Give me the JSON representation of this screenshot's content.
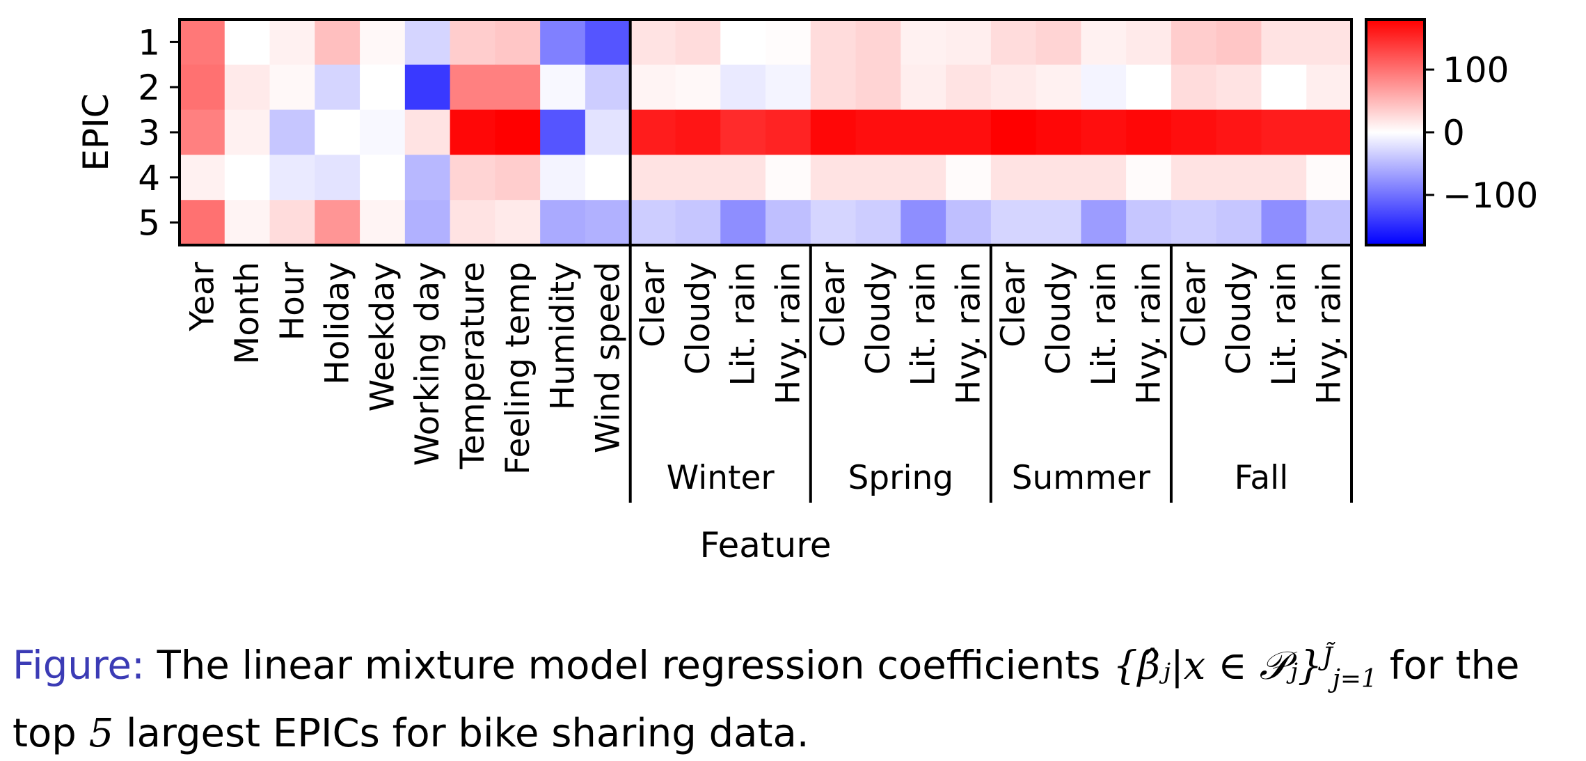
{
  "chart_data": {
    "type": "heatmap",
    "ylabel": "EPIC",
    "xlabel": "Feature",
    "rows": [
      "1",
      "2",
      "3",
      "4",
      "5"
    ],
    "features": [
      "Year",
      "Month",
      "Hour",
      "Holiday",
      "Weekday",
      "Working day",
      "Temperature",
      "Feeling temp",
      "Humidity",
      "Wind speed"
    ],
    "season_groups": [
      {
        "name": "Winter",
        "weather": [
          "Clear",
          "Cloudy",
          "Lit. rain",
          "Hvy. rain"
        ]
      },
      {
        "name": "Spring",
        "weather": [
          "Clear",
          "Cloudy",
          "Lit. rain",
          "Hvy. rain"
        ]
      },
      {
        "name": "Summer",
        "weather": [
          "Clear",
          "Cloudy",
          "Lit. rain",
          "Hvy. rain"
        ]
      },
      {
        "name": "Fall",
        "weather": [
          "Clear",
          "Cloudy",
          "Lit. rain",
          "Hvy. rain"
        ]
      }
    ],
    "values": [
      [
        95,
        0,
        10,
        45,
        5,
        -30,
        35,
        40,
        -90,
        -120,
        20,
        25,
        0,
        2,
        25,
        30,
        10,
        12,
        25,
        30,
        10,
        15,
        35,
        40,
        20,
        20
      ],
      [
        100,
        15,
        5,
        -30,
        0,
        -140,
        90,
        90,
        -5,
        -35,
        8,
        5,
        -15,
        -8,
        25,
        30,
        12,
        20,
        15,
        10,
        -8,
        0,
        25,
        20,
        0,
        12
      ],
      [
        90,
        10,
        -40,
        0,
        -5,
        20,
        175,
        185,
        -120,
        -20,
        160,
        165,
        150,
        155,
        175,
        170,
        170,
        170,
        180,
        175,
        170,
        175,
        170,
        165,
        160,
        160
      ],
      [
        10,
        0,
        -15,
        -20,
        0,
        -50,
        30,
        35,
        -8,
        0,
        20,
        20,
        20,
        3,
        20,
        20,
        20,
        3,
        20,
        20,
        20,
        3,
        20,
        20,
        20,
        3
      ],
      [
        100,
        8,
        25,
        75,
        8,
        -55,
        20,
        15,
        -60,
        -55,
        -35,
        -40,
        -80,
        -45,
        -30,
        -35,
        -80,
        -45,
        -30,
        -30,
        -70,
        -40,
        -35,
        -40,
        -80,
        -45
      ]
    ],
    "colorbar": {
      "colormap": "bwr",
      "range": [
        -180,
        180
      ],
      "ticks": [
        100,
        0,
        -100
      ],
      "tick_labels": [
        "100",
        "0",
        "−100"
      ]
    }
  },
  "caption": {
    "label": "Figure:",
    "text_before": "The linear mixture model regression coefficients",
    "math": "{β̂ⱼ|x ∈ 𝒫ⱼ}",
    "math_sub": "j=1",
    "math_sup": "J̃",
    "text_after": "for the top",
    "number": "5",
    "text_end": "largest EPICs for bike sharing data."
  }
}
